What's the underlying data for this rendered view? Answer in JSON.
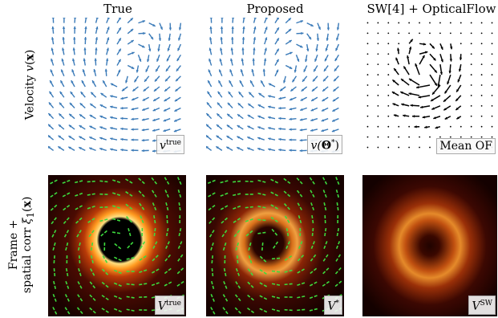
{
  "columns": [
    "True",
    "Proposed",
    "SW[4] + OpticalFlow"
  ],
  "rows": {
    "top": {
      "prefix": "Velocity ",
      "func": "v",
      "arg": "x"
    },
    "bottom": {
      "line1": "Frame +",
      "line2_prefix": "spatial corr ",
      "func": "ξ",
      "sub": "1",
      "arg": "x"
    }
  },
  "tags": {
    "top_true": {
      "base": "v",
      "sup": "true"
    },
    "top_proposed": {
      "base": "v(",
      "bold": "Θ",
      "sup": "*",
      "end": ")"
    },
    "top_sw": "Mean OF",
    "bottom_true": {
      "base": "V",
      "sup": "true"
    },
    "bottom_proposed": {
      "base": "V",
      "sup": "*"
    },
    "bottom_sw": {
      "base": "V",
      "sup": "SW"
    }
  },
  "colors": {
    "arrow_blue": "#3a7ab8",
    "flow_black": "#000000",
    "tick_green": "#3ddb3d"
  }
}
